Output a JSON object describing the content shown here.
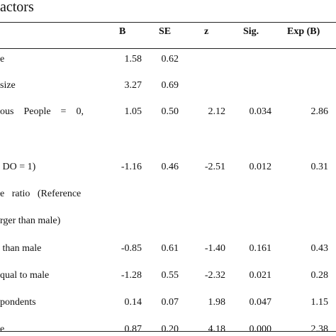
{
  "table_title": "actors",
  "columns": [
    "B",
    "SE",
    "z",
    "Sig.",
    "Exp (B)"
  ],
  "rows": [
    {
      "label": "e",
      "B": "1.58",
      "SE": "0.62",
      "z": "",
      "sig": "",
      "expb": ""
    },
    {
      "label": "size",
      "B": "3.27",
      "SE": "0.69",
      "z": "",
      "sig": "",
      "expb": ""
    },
    {
      "label": "ous    People    =    0,",
      "B": "1.05",
      "SE": "0.50",
      "z": "2.12",
      "sig": "0.034",
      "expb": "2.86"
    },
    {
      "label": " DO = 1)",
      "B": "-1.16",
      "SE": "0.46",
      "z": "-2.51",
      "sig": "0.012",
      "expb": "0.31"
    },
    {
      "label": "e   ratio   (Reference",
      "B": "",
      "SE": "",
      "z": "",
      "sig": "",
      "expb": ""
    },
    {
      "label": "rger than male)",
      "B": "",
      "SE": "",
      "z": "",
      "sig": "",
      "expb": ""
    },
    {
      "label": " than male",
      "B": "-0.85",
      "SE": "0.61",
      "z": "-1.40",
      "sig": "0.161",
      "expb": "0.43"
    },
    {
      "label": "qual to male",
      "B": "-1.28",
      "SE": "0.55",
      "z": "-2.32",
      "sig": "0.021",
      "expb": "0.28"
    },
    {
      "label": "pondents",
      "B": "0.14",
      "SE": "0.07",
      "z": "1.98",
      "sig": "0.047",
      "expb": "1.15"
    },
    {
      "label": "e",
      "B": "0.87",
      "SE": "0.20",
      "z": "4.18",
      "sig": "0.000",
      "expb": "2.38"
    }
  ]
}
